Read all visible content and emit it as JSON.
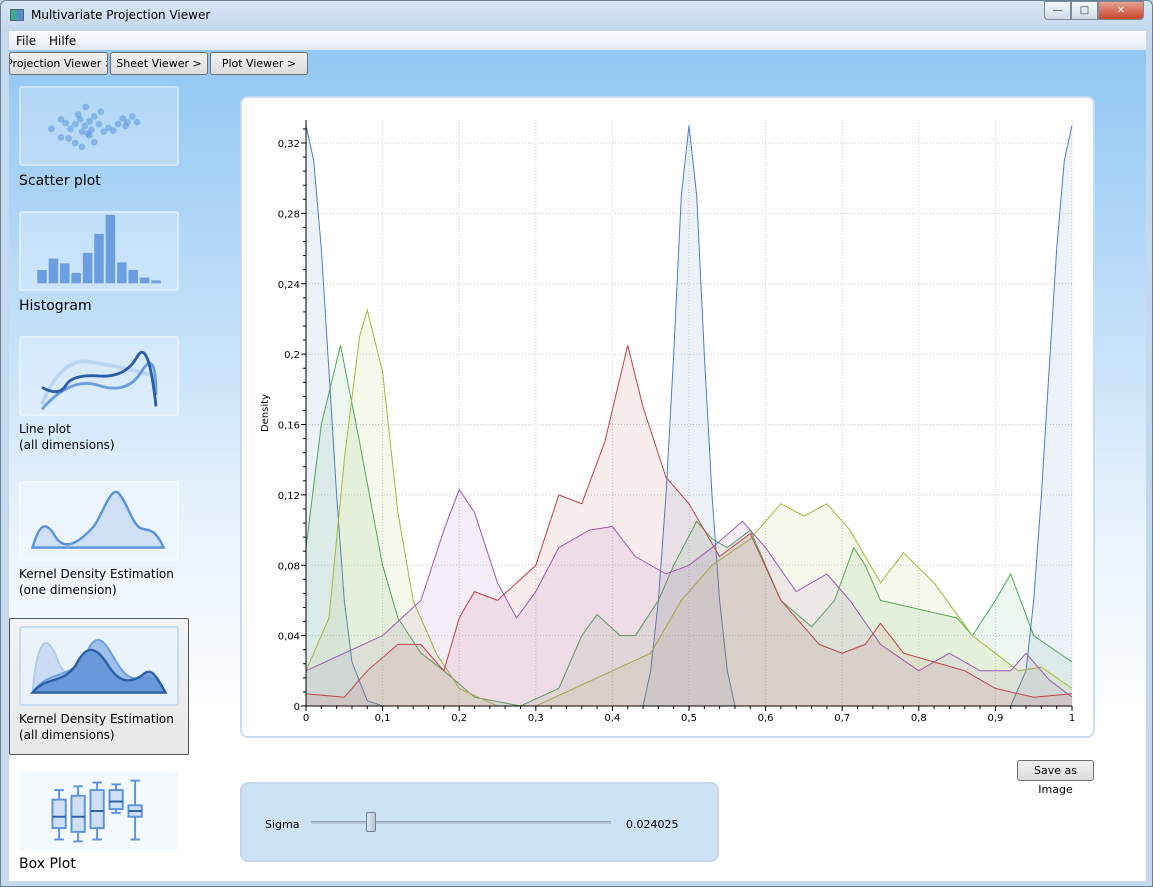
{
  "window": {
    "title": "Multivariate Projection Viewer",
    "controls": [
      "minimize",
      "maximize",
      "close"
    ]
  },
  "menu": {
    "items": [
      "File",
      "Hilfe"
    ]
  },
  "toolbar": {
    "buttons": [
      "Projection Viewer >",
      "Sheet Viewer >",
      "Plot Viewer >"
    ]
  },
  "sidebar": {
    "items": [
      {
        "label": "Scatter plot",
        "icon": "scatter-plot-thumbnail"
      },
      {
        "label": "Histogram",
        "icon": "histogram-thumbnail"
      },
      {
        "label": "Line plot\n(all dimensions)",
        "line1": "Line plot",
        "line2": "(all dimensions)",
        "icon": "line-plot-thumbnail"
      },
      {
        "label": "Kernel Density Estimation (one dimension)",
        "line1": "Kernel Density Estimation",
        "line2": "(one dimension)",
        "icon": "kde-one-thumbnail"
      },
      {
        "label": "Kernel Density Estimation (all dimensions)",
        "line1": "Kernel Density Estimation",
        "line2": "(all dimensions)",
        "icon": "kde-all-thumbnail",
        "selected": true
      },
      {
        "label": "Box Plot",
        "icon": "box-plot-thumbnail"
      }
    ]
  },
  "controls": {
    "save_label": "Save as Image",
    "sigma_label": "Sigma",
    "sigma_value": "0.024025",
    "sigma_slider_fraction": 0.2
  },
  "chart_data": {
    "type": "area",
    "ylabel": "Density",
    "xlabel": "",
    "xlim": [
      0,
      1
    ],
    "ylim": [
      0,
      0.33
    ],
    "xticks": [
      "0",
      "0,1",
      "0,2",
      "0,3",
      "0,4",
      "0,5",
      "0,6",
      "0,7",
      "0,8",
      "0,9",
      "1"
    ],
    "yticks": [
      "0",
      "0,04",
      "0,08",
      "0,12",
      "0,16",
      "0,2",
      "0,24",
      "0,28",
      "0,32"
    ],
    "grid": true,
    "series": [
      {
        "color": "#4a7fc1",
        "points": [
          [
            0,
            0.33
          ],
          [
            0.01,
            0.31
          ],
          [
            0.02,
            0.26
          ],
          [
            0.03,
            0.19
          ],
          [
            0.04,
            0.12
          ],
          [
            0.05,
            0.06
          ],
          [
            0.06,
            0.025
          ],
          [
            0.08,
            0.003
          ],
          [
            0.1,
            0
          ],
          [
            0.44,
            0
          ],
          [
            0.45,
            0.02
          ],
          [
            0.46,
            0.06
          ],
          [
            0.47,
            0.12
          ],
          [
            0.48,
            0.2
          ],
          [
            0.49,
            0.29
          ],
          [
            0.5,
            0.33
          ],
          [
            0.51,
            0.29
          ],
          [
            0.52,
            0.2
          ],
          [
            0.53,
            0.12
          ],
          [
            0.54,
            0.06
          ],
          [
            0.55,
            0.02
          ],
          [
            0.56,
            0
          ],
          [
            0.92,
            0
          ],
          [
            0.94,
            0.02
          ],
          [
            0.95,
            0.06
          ],
          [
            0.96,
            0.12
          ],
          [
            0.97,
            0.19
          ],
          [
            0.98,
            0.26
          ],
          [
            0.99,
            0.31
          ],
          [
            1,
            0.33
          ]
        ]
      },
      {
        "color": "#4aa85a",
        "points": [
          [
            0,
            0.09
          ],
          [
            0.02,
            0.16
          ],
          [
            0.045,
            0.205
          ],
          [
            0.07,
            0.15
          ],
          [
            0.1,
            0.08
          ],
          [
            0.12,
            0.05
          ],
          [
            0.15,
            0.03
          ],
          [
            0.18,
            0.02
          ],
          [
            0.22,
            0.005
          ],
          [
            0.28,
            0
          ],
          [
            0.33,
            0.01
          ],
          [
            0.36,
            0.04
          ],
          [
            0.38,
            0.052
          ],
          [
            0.41,
            0.04
          ],
          [
            0.43,
            0.04
          ],
          [
            0.46,
            0.06
          ],
          [
            0.48,
            0.08
          ],
          [
            0.51,
            0.105
          ],
          [
            0.53,
            0.095
          ],
          [
            0.55,
            0.09
          ],
          [
            0.58,
            0.1
          ],
          [
            0.6,
            0.08
          ],
          [
            0.62,
            0.06
          ],
          [
            0.66,
            0.045
          ],
          [
            0.69,
            0.06
          ],
          [
            0.715,
            0.09
          ],
          [
            0.73,
            0.08
          ],
          [
            0.75,
            0.06
          ],
          [
            0.8,
            0.055
          ],
          [
            0.85,
            0.05
          ],
          [
            0.87,
            0.04
          ],
          [
            0.9,
            0.06
          ],
          [
            0.92,
            0.075
          ],
          [
            0.95,
            0.04
          ],
          [
            1,
            0.025
          ]
        ]
      },
      {
        "color": "#a8b83a",
        "points": [
          [
            0,
            0.02
          ],
          [
            0.03,
            0.05
          ],
          [
            0.05,
            0.14
          ],
          [
            0.07,
            0.21
          ],
          [
            0.08,
            0.225
          ],
          [
            0.1,
            0.19
          ],
          [
            0.12,
            0.11
          ],
          [
            0.14,
            0.06
          ],
          [
            0.17,
            0.03
          ],
          [
            0.2,
            0.01
          ],
          [
            0.25,
            0
          ],
          [
            0.3,
            0
          ],
          [
            0.35,
            0.01
          ],
          [
            0.4,
            0.02
          ],
          [
            0.45,
            0.03
          ],
          [
            0.49,
            0.06
          ],
          [
            0.53,
            0.08
          ],
          [
            0.58,
            0.095
          ],
          [
            0.62,
            0.115
          ],
          [
            0.65,
            0.108
          ],
          [
            0.68,
            0.115
          ],
          [
            0.71,
            0.1
          ],
          [
            0.75,
            0.07
          ],
          [
            0.78,
            0.087
          ],
          [
            0.82,
            0.07
          ],
          [
            0.87,
            0.04
          ],
          [
            0.93,
            0.02
          ],
          [
            0.96,
            0.022
          ],
          [
            1,
            0.01
          ]
        ]
      },
      {
        "color": "#9a5ab8",
        "points": [
          [
            0,
            0.02
          ],
          [
            0.05,
            0.03
          ],
          [
            0.1,
            0.04
          ],
          [
            0.15,
            0.06
          ],
          [
            0.18,
            0.1
          ],
          [
            0.2,
            0.123
          ],
          [
            0.22,
            0.11
          ],
          [
            0.25,
            0.07
          ],
          [
            0.275,
            0.05
          ],
          [
            0.3,
            0.065
          ],
          [
            0.33,
            0.09
          ],
          [
            0.37,
            0.1
          ],
          [
            0.4,
            0.102
          ],
          [
            0.43,
            0.085
          ],
          [
            0.47,
            0.075
          ],
          [
            0.5,
            0.08
          ],
          [
            0.53,
            0.09
          ],
          [
            0.57,
            0.105
          ],
          [
            0.6,
            0.09
          ],
          [
            0.64,
            0.065
          ],
          [
            0.68,
            0.075
          ],
          [
            0.71,
            0.06
          ],
          [
            0.75,
            0.035
          ],
          [
            0.8,
            0.02
          ],
          [
            0.84,
            0.03
          ],
          [
            0.88,
            0.02
          ],
          [
            0.92,
            0.02
          ],
          [
            0.94,
            0.03
          ],
          [
            0.97,
            0.015
          ],
          [
            1,
            0.005
          ]
        ]
      },
      {
        "color": "#c0444a",
        "points": [
          [
            0,
            0.007
          ],
          [
            0.05,
            0.005
          ],
          [
            0.08,
            0.02
          ],
          [
            0.12,
            0.035
          ],
          [
            0.15,
            0.035
          ],
          [
            0.18,
            0.02
          ],
          [
            0.2,
            0.05
          ],
          [
            0.22,
            0.065
          ],
          [
            0.25,
            0.06
          ],
          [
            0.3,
            0.08
          ],
          [
            0.33,
            0.12
          ],
          [
            0.36,
            0.115
          ],
          [
            0.39,
            0.15
          ],
          [
            0.42,
            0.205
          ],
          [
            0.44,
            0.17
          ],
          [
            0.47,
            0.13
          ],
          [
            0.5,
            0.115
          ],
          [
            0.54,
            0.085
          ],
          [
            0.58,
            0.098
          ],
          [
            0.62,
            0.06
          ],
          [
            0.67,
            0.035
          ],
          [
            0.7,
            0.03
          ],
          [
            0.73,
            0.035
          ],
          [
            0.75,
            0.047
          ],
          [
            0.78,
            0.03
          ],
          [
            0.82,
            0.025
          ],
          [
            0.86,
            0.02
          ],
          [
            0.9,
            0.01
          ],
          [
            0.95,
            0.005
          ],
          [
            1,
            0.007
          ]
        ]
      }
    ]
  }
}
